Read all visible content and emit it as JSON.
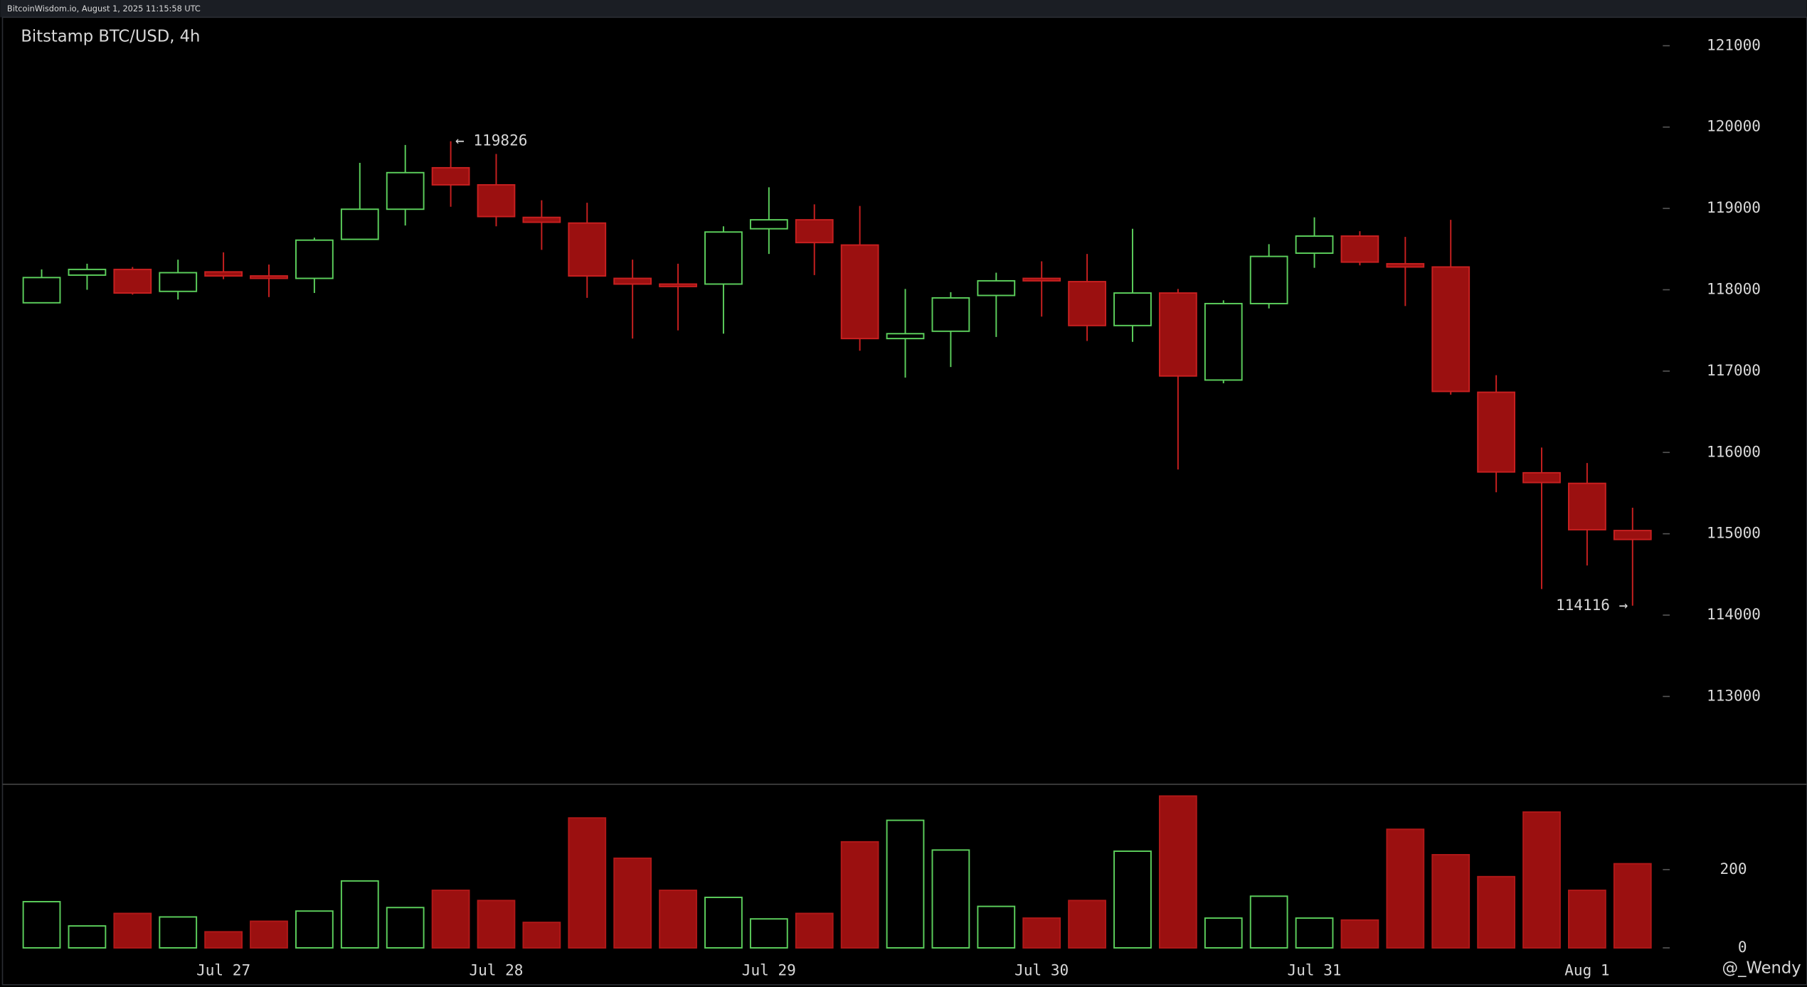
{
  "header": "BitcoinWisdom.io, August 1, 2025 11:15:58 UTC",
  "watermark": "@_Wendy",
  "chart_data": {
    "type": "candlestick",
    "title": "Bitstamp BTC/USD, 4h",
    "categories": [
      null,
      null,
      null,
      null,
      "Jul 27",
      null,
      null,
      null,
      null,
      null,
      "Jul 28",
      null,
      null,
      null,
      null,
      null,
      "Jul 29",
      null,
      null,
      null,
      null,
      null,
      "Jul 30",
      null,
      null,
      null,
      null,
      null,
      "Jul 31",
      null,
      null,
      null,
      null,
      null,
      "Aug 1",
      null
    ],
    "open": [
      117840,
      118180,
      118250,
      117980,
      118220,
      118170,
      118140,
      118620,
      118990,
      119500,
      119290,
      118890,
      118820,
      118140,
      118070,
      118070,
      118750,
      118860,
      118550,
      117400,
      117490,
      117930,
      118140,
      118100,
      117560,
      117960,
      116890,
      117830,
      118450,
      118660,
      118320,
      118280,
      116740,
      115750,
      115620,
      115040
    ],
    "high": [
      118250,
      118320,
      118280,
      118370,
      118460,
      118310,
      118640,
      119560,
      119780,
      119826,
      119670,
      119100,
      119070,
      118370,
      118320,
      118780,
      119260,
      119050,
      119030,
      118010,
      117970,
      118210,
      118350,
      118440,
      118750,
      118010,
      117870,
      118560,
      118890,
      118720,
      118650,
      118860,
      116950,
      116060,
      115870,
      115320
    ],
    "low": [
      117840,
      118000,
      117940,
      117880,
      118130,
      117910,
      117960,
      118620,
      118790,
      119020,
      118780,
      118490,
      117900,
      117400,
      117500,
      117460,
      118440,
      118180,
      117250,
      116920,
      117050,
      117420,
      117670,
      117370,
      117360,
      115790,
      116850,
      117770,
      118270,
      118300,
      117800,
      116710,
      115510,
      114320,
      114610,
      114116
    ],
    "close": [
      118150,
      118250,
      117960,
      118210,
      118170,
      118140,
      118610,
      118990,
      119440,
      119290,
      118900,
      118830,
      118170,
      118070,
      118040,
      118710,
      118860,
      118580,
      117400,
      117460,
      117900,
      118110,
      118110,
      117560,
      117960,
      116940,
      117830,
      118410,
      118660,
      118340,
      118280,
      116750,
      115760,
      115630,
      115050,
      114930
    ],
    "volume": [
      118,
      56,
      88,
      79,
      41,
      68,
      94,
      171,
      103,
      147,
      121,
      65,
      332,
      229,
      147,
      129,
      74,
      88,
      271,
      326,
      250,
      106,
      76,
      121,
      247,
      388,
      76,
      132,
      76,
      71,
      303,
      238,
      182,
      347,
      147,
      215
    ],
    "up_color": "#5ccf5c",
    "down_color": "#9b1010",
    "ylim": [
      111920,
      121350
    ],
    "yticks": [
      113000,
      114000,
      115000,
      116000,
      117000,
      118000,
      119000,
      120000,
      121000
    ],
    "volume_ylim": [
      0,
      418
    ],
    "volume_yticks": [
      0,
      200
    ],
    "annotations": [
      {
        "text": "← 119826",
        "x": 9,
        "y": 119826
      },
      {
        "text": "114116 →",
        "x": 35,
        "y": 114116
      }
    ]
  }
}
